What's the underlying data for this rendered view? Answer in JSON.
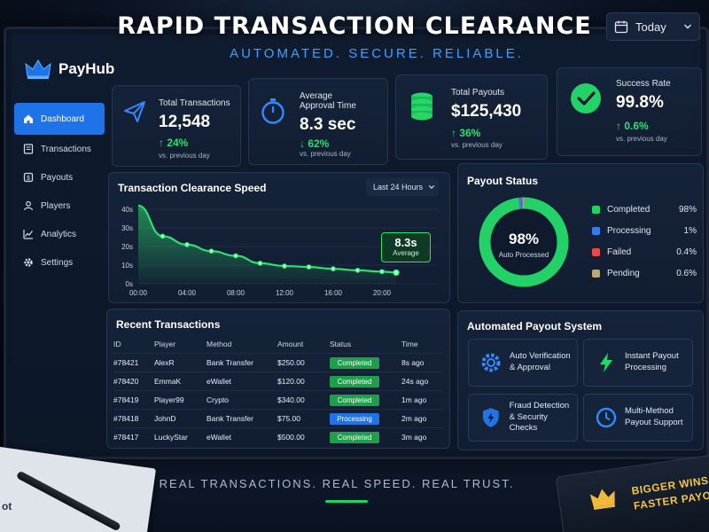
{
  "header": {
    "headline": "RAPID TRANSACTION CLEARANCE",
    "tagline": "AUTOMATED. SECURE. RELIABLE.",
    "date_filter": "Today"
  },
  "brand": {
    "name": "PayHub"
  },
  "sidebar": {
    "items": [
      {
        "label": "Dashboard",
        "icon": "home-icon",
        "active": true
      },
      {
        "label": "Transactions",
        "icon": "receipt-icon"
      },
      {
        "label": "Payouts",
        "icon": "payout-icon"
      },
      {
        "label": "Players",
        "icon": "user-icon"
      },
      {
        "label": "Analytics",
        "icon": "chart-icon"
      },
      {
        "label": "Settings",
        "icon": "gear-icon"
      }
    ]
  },
  "stats": [
    {
      "label": "Total Transactions",
      "value": "12,548",
      "change": "↑ 24%",
      "sub": "vs. previous day",
      "icon": "paper-plane-icon"
    },
    {
      "label_line1": "Average",
      "label_line2": "Approval Time",
      "value": "8.3 sec",
      "change": "↓ 62%",
      "sub": "vs. previous day",
      "icon": "stopwatch-icon"
    },
    {
      "label": "Total Payouts",
      "value": "$125,430",
      "change": "↑ 36%",
      "sub": "vs. previous day",
      "icon": "coins-icon"
    },
    {
      "label": "Success Rate",
      "value": "99.8%",
      "change": "↑ 0.6%",
      "sub": "vs. previous day",
      "icon": "check-circle-icon"
    }
  ],
  "speed_panel": {
    "title": "Transaction Clearance Speed",
    "range": "Last 24 Hours",
    "callout_value": "8.3s",
    "callout_label": "Average"
  },
  "chart_data": {
    "type": "area",
    "title": "Transaction Clearance Speed",
    "x": [
      "00:00",
      "02:00",
      "04:00",
      "06:00",
      "08:00",
      "10:00",
      "12:00",
      "14:00",
      "16:00",
      "18:00",
      "20:00",
      "21:10"
    ],
    "values": [
      42,
      25.5,
      21,
      17.5,
      15,
      11,
      9.5,
      9,
      8,
      7.2,
      6.5,
      6
    ],
    "x_ticks": [
      "00:00",
      "04:00",
      "08:00",
      "12:00",
      "16:00",
      "20:00"
    ],
    "y_ticks": [
      "0s",
      "10s",
      "20s",
      "30s",
      "40s"
    ],
    "ylim": [
      0,
      40
    ],
    "color": "#2ee06e"
  },
  "payout_status": {
    "title": "Payout Status",
    "center_value": "98%",
    "center_label": "Auto Processed",
    "items": [
      {
        "label": "Completed",
        "value": "98%",
        "color": "#22d266",
        "pct": 98
      },
      {
        "label": "Processing",
        "value": "1%",
        "color": "#2f7df0",
        "pct": 1
      },
      {
        "label": "Failed",
        "value": "0.4%",
        "color": "#e84a4a",
        "pct": 0.4
      },
      {
        "label": "Pending",
        "value": "0.6%",
        "color": "#b9a97a",
        "pct": 0.6
      }
    ]
  },
  "recent": {
    "title": "Recent Transactions",
    "columns": [
      "ID",
      "Player",
      "Method",
      "Amount",
      "Status",
      "Time"
    ],
    "rows": [
      {
        "id": "#78421",
        "player": "AlexR",
        "method": "Bank Transfer",
        "amount": "$250.00",
        "status": "Completed",
        "time": "8s ago"
      },
      {
        "id": "#78420",
        "player": "EmmaK",
        "method": "eWallet",
        "amount": "$120.00",
        "status": "Completed",
        "time": "24s ago"
      },
      {
        "id": "#78419",
        "player": "Player99",
        "method": "Crypto",
        "amount": "$340.00",
        "status": "Completed",
        "time": "1m ago"
      },
      {
        "id": "#78418",
        "player": "JohnD",
        "method": "Bank Transfer",
        "amount": "$75.00",
        "status": "Processing",
        "time": "2m ago"
      },
      {
        "id": "#78417",
        "player": "LuckyStar",
        "method": "eWallet",
        "amount": "$500.00",
        "status": "Completed",
        "time": "3m ago"
      }
    ]
  },
  "automated": {
    "title": "Automated Payout System",
    "features": [
      {
        "line1": "Auto Verification",
        "line2": "& Approval",
        "icon": "gear-icon"
      },
      {
        "line1": "Instant Payout",
        "line2": "Processing",
        "icon": "lightning-icon"
      },
      {
        "line1": "Fraud Detection",
        "line2": "& Security Checks",
        "icon": "shield-icon"
      },
      {
        "line1": "Multi-Method",
        "line2": "Payout Support",
        "icon": "clock-icon"
      }
    ]
  },
  "footer": {
    "tagline": "REAL TRANSACTIONS. REAL SPEED. REAL TRUST.",
    "paper_text": "ot",
    "promo_line1": "BIGGER WINS",
    "promo_line2": "FASTER PAYO"
  },
  "colors": {
    "accent": "#1e73e8",
    "success": "#22d266",
    "background": "#0c1728"
  }
}
